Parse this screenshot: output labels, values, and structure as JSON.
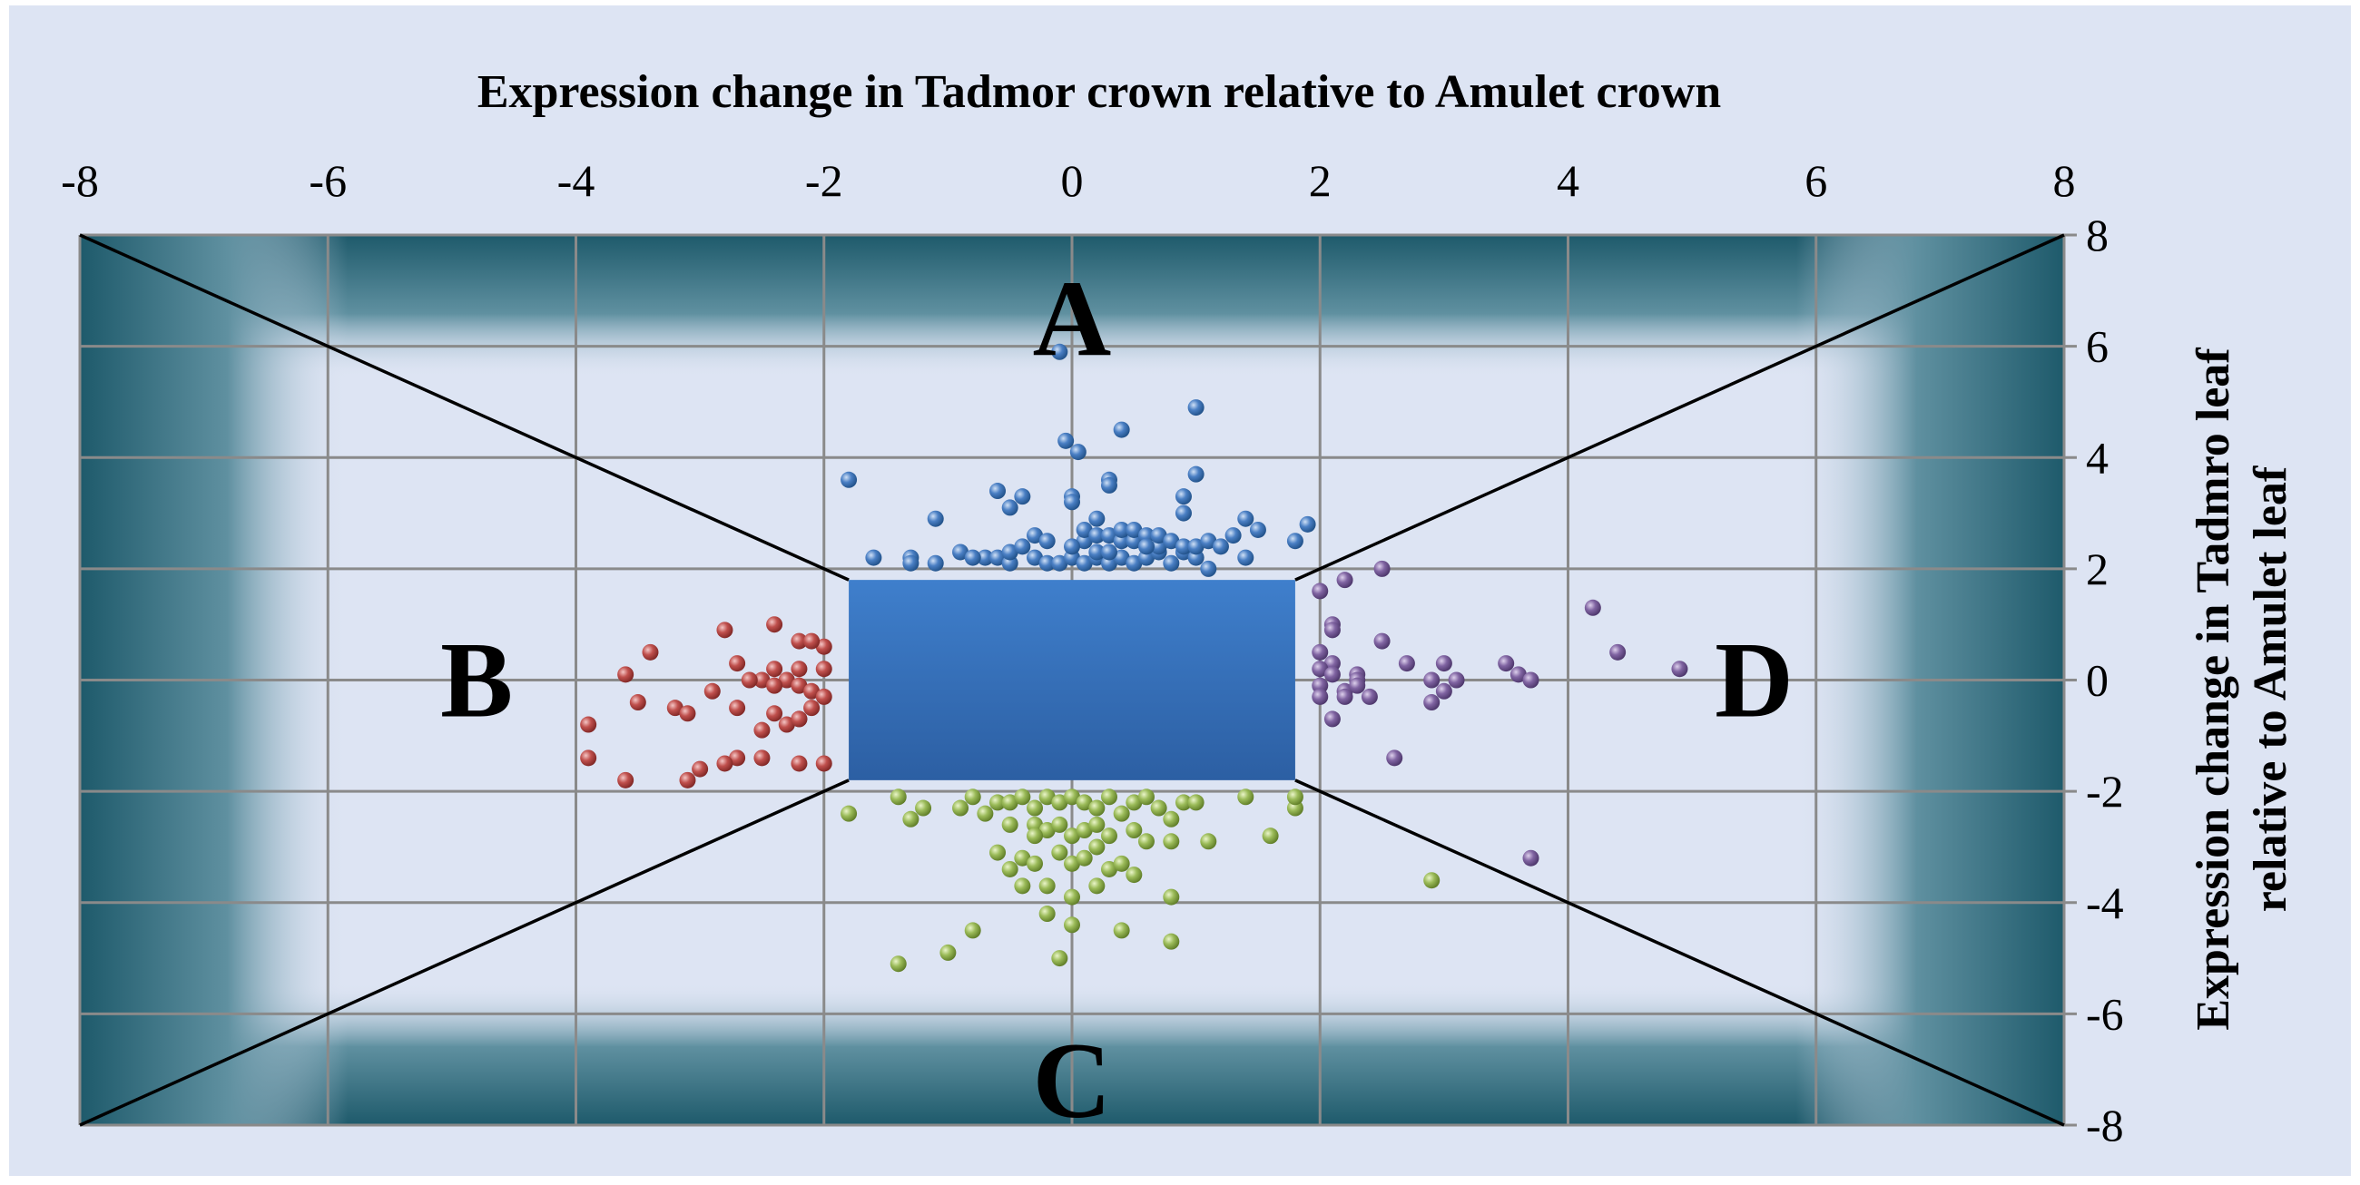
{
  "chart_data": {
    "type": "scatter",
    "title": "",
    "xlabel": "Expression change in Tadmor crown relative to Amulet crown",
    "ylabel": [
      "Expression change in Tadmro leaf",
      "relative to Amulet leaf"
    ],
    "xlim": [
      -8,
      8
    ],
    "ylim": [
      -8,
      8
    ],
    "x_ticks": [
      "-8",
      "-6",
      "-4",
      "-2",
      "0",
      "2",
      "4",
      "6",
      "8"
    ],
    "y_ticks": [
      "8",
      "6",
      "4",
      "2",
      "0",
      "-2",
      "-4",
      "-6",
      "-8"
    ],
    "x_axis_position": "top",
    "y_axis_position": "right",
    "grid": true,
    "threshold_box": {
      "x": [
        -1.8,
        1.8
      ],
      "y": [
        -1.8,
        1.8
      ],
      "color": "#3a78c6"
    },
    "region_labels": [
      {
        "text": "A",
        "x": 0,
        "y": 6.5
      },
      {
        "text": "B",
        "x": -4.8,
        "y": 0
      },
      {
        "text": "C",
        "x": 0,
        "y": -7.2
      },
      {
        "text": "D",
        "x": 5.5,
        "y": 0
      }
    ],
    "colors": {
      "A": "#4a7fc4",
      "B": "#c0504d",
      "C": "#9bbb59",
      "D": "#8064a2",
      "background": "#dde4f3",
      "border": "#1e5a6b"
    },
    "series": [
      {
        "group": "A",
        "color": "#4a7fc4",
        "points": [
          [
            -0.1,
            5.9
          ],
          [
            1.0,
            4.9
          ],
          [
            0.4,
            4.5
          ],
          [
            -0.05,
            4.3
          ],
          [
            0.05,
            4.1
          ],
          [
            -1.8,
            3.6
          ],
          [
            1.0,
            3.7
          ],
          [
            0.3,
            3.6
          ],
          [
            0.3,
            3.5
          ],
          [
            -0.6,
            3.4
          ],
          [
            -0.4,
            3.3
          ],
          [
            -0.5,
            3.1
          ],
          [
            0.0,
            3.3
          ],
          [
            0.0,
            3.2
          ],
          [
            0.9,
            3.3
          ],
          [
            1.4,
            2.9
          ],
          [
            1.5,
            2.7
          ],
          [
            1.8,
            2.5
          ],
          [
            1.9,
            2.8
          ],
          [
            0.9,
            3.0
          ],
          [
            -1.1,
            2.9
          ],
          [
            0.2,
            2.9
          ],
          [
            -1.6,
            2.2
          ],
          [
            -1.3,
            2.2
          ],
          [
            -1.3,
            2.1
          ],
          [
            -1.1,
            2.1
          ],
          [
            -0.7,
            2.2
          ],
          [
            -0.6,
            2.2
          ],
          [
            -0.5,
            2.1
          ],
          [
            -0.3,
            2.2
          ],
          [
            -0.2,
            2.1
          ],
          [
            -0.1,
            2.1
          ],
          [
            0.0,
            2.2
          ],
          [
            0.1,
            2.1
          ],
          [
            0.2,
            2.2
          ],
          [
            0.3,
            2.1
          ],
          [
            0.4,
            2.2
          ],
          [
            0.5,
            2.1
          ],
          [
            0.6,
            2.2
          ],
          [
            0.7,
            2.3
          ],
          [
            0.8,
            2.1
          ],
          [
            0.9,
            2.3
          ],
          [
            1.0,
            2.2
          ],
          [
            1.1,
            2.0
          ],
          [
            1.4,
            2.2
          ],
          [
            -0.3,
            2.6
          ],
          [
            -0.2,
            2.5
          ],
          [
            0.1,
            2.5
          ],
          [
            0.1,
            2.7
          ],
          [
            0.2,
            2.6
          ],
          [
            0.3,
            2.6
          ],
          [
            0.4,
            2.5
          ],
          [
            0.4,
            2.7
          ],
          [
            0.5,
            2.5
          ],
          [
            0.5,
            2.7
          ],
          [
            0.6,
            2.6
          ],
          [
            0.7,
            2.4
          ],
          [
            0.7,
            2.6
          ],
          [
            0.8,
            2.5
          ],
          [
            0.9,
            2.4
          ],
          [
            1.0,
            2.4
          ],
          [
            1.1,
            2.5
          ],
          [
            1.2,
            2.4
          ],
          [
            1.3,
            2.6
          ],
          [
            -0.5,
            2.3
          ],
          [
            -0.4,
            2.4
          ],
          [
            0.0,
            2.4
          ],
          [
            0.2,
            2.3
          ],
          [
            -0.9,
            2.3
          ],
          [
            -0.8,
            2.2
          ],
          [
            0.3,
            2.3
          ],
          [
            0.6,
            2.4
          ]
        ]
      },
      {
        "group": "B",
        "color": "#c0504d",
        "points": [
          [
            -2.4,
            1.0
          ],
          [
            -2.8,
            0.9
          ],
          [
            -2.2,
            0.7
          ],
          [
            -2.0,
            0.6
          ],
          [
            -2.1,
            0.7
          ],
          [
            -3.4,
            0.5
          ],
          [
            -2.7,
            0.3
          ],
          [
            -2.2,
            0.2
          ],
          [
            -2.4,
            0.2
          ],
          [
            -2.0,
            0.2
          ],
          [
            -3.6,
            0.1
          ],
          [
            -2.3,
            0.0
          ],
          [
            -2.5,
            0.0
          ],
          [
            -2.6,
            0.0
          ],
          [
            -2.9,
            -0.2
          ],
          [
            -2.4,
            -0.1
          ],
          [
            -2.2,
            -0.1
          ],
          [
            -2.1,
            -0.2
          ],
          [
            -2.0,
            -0.3
          ],
          [
            -3.5,
            -0.4
          ],
          [
            -3.2,
            -0.5
          ],
          [
            -3.1,
            -0.6
          ],
          [
            -2.7,
            -0.5
          ],
          [
            -2.4,
            -0.6
          ],
          [
            -2.2,
            -0.7
          ],
          [
            -2.3,
            -0.8
          ],
          [
            -3.9,
            -0.8
          ],
          [
            -2.5,
            -0.9
          ],
          [
            -2.2,
            -0.7
          ],
          [
            -3.9,
            -1.4
          ],
          [
            -2.7,
            -1.4
          ],
          [
            -2.8,
            -1.5
          ],
          [
            -2.5,
            -1.4
          ],
          [
            -2.2,
            -1.5
          ],
          [
            -2.0,
            -1.5
          ],
          [
            -3.0,
            -1.6
          ],
          [
            -3.6,
            -1.8
          ],
          [
            -3.1,
            -1.8
          ],
          [
            -2.1,
            -0.5
          ]
        ]
      },
      {
        "group": "C",
        "color": "#9bbb59",
        "points": [
          [
            -1.8,
            -2.4
          ],
          [
            -1.4,
            -2.1
          ],
          [
            -1.3,
            -2.5
          ],
          [
            -1.2,
            -2.3
          ],
          [
            -0.9,
            -2.3
          ],
          [
            -0.8,
            -2.1
          ],
          [
            -0.7,
            -2.4
          ],
          [
            -0.6,
            -2.2
          ],
          [
            -0.5,
            -2.2
          ],
          [
            -0.4,
            -2.1
          ],
          [
            -0.3,
            -2.3
          ],
          [
            -0.2,
            -2.1
          ],
          [
            -0.1,
            -2.2
          ],
          [
            0.0,
            -2.1
          ],
          [
            0.1,
            -2.2
          ],
          [
            0.2,
            -2.3
          ],
          [
            0.3,
            -2.1
          ],
          [
            0.4,
            -2.4
          ],
          [
            0.5,
            -2.2
          ],
          [
            0.6,
            -2.1
          ],
          [
            0.7,
            -2.3
          ],
          [
            0.8,
            -2.5
          ],
          [
            0.9,
            -2.2
          ],
          [
            1.0,
            -2.2
          ],
          [
            1.4,
            -2.1
          ],
          [
            1.8,
            -2.3
          ],
          [
            1.8,
            -2.1
          ],
          [
            -0.5,
            -2.6
          ],
          [
            -0.3,
            -2.6
          ],
          [
            -0.2,
            -2.7
          ],
          [
            -0.1,
            -2.6
          ],
          [
            0.0,
            -2.8
          ],
          [
            0.1,
            -2.7
          ],
          [
            0.2,
            -2.6
          ],
          [
            0.3,
            -2.8
          ],
          [
            0.5,
            -2.7
          ],
          [
            0.6,
            -2.9
          ],
          [
            0.8,
            -2.9
          ],
          [
            1.1,
            -2.9
          ],
          [
            1.6,
            -2.8
          ],
          [
            -0.6,
            -3.1
          ],
          [
            -0.4,
            -3.2
          ],
          [
            -0.3,
            -3.3
          ],
          [
            -0.1,
            -3.1
          ],
          [
            0.0,
            -3.3
          ],
          [
            0.1,
            -3.2
          ],
          [
            0.3,
            -3.4
          ],
          [
            0.4,
            -3.3
          ],
          [
            0.5,
            -3.5
          ],
          [
            -0.5,
            -3.4
          ],
          [
            -0.4,
            -3.7
          ],
          [
            -0.2,
            -3.7
          ],
          [
            0.0,
            -3.9
          ],
          [
            0.2,
            -3.7
          ],
          [
            0.8,
            -3.9
          ],
          [
            -0.2,
            -4.2
          ],
          [
            0.0,
            -4.4
          ],
          [
            0.4,
            -4.5
          ],
          [
            -0.8,
            -4.5
          ],
          [
            0.8,
            -4.7
          ],
          [
            -1.0,
            -4.9
          ],
          [
            -1.4,
            -5.1
          ],
          [
            -0.1,
            -5.0
          ],
          [
            2.9,
            -3.6
          ],
          [
            -0.3,
            -2.8
          ],
          [
            0.2,
            -3.0
          ]
        ]
      },
      {
        "group": "D",
        "color": "#8064a2",
        "points": [
          [
            2.0,
            1.6
          ],
          [
            2.2,
            1.8
          ],
          [
            2.5,
            2.0
          ],
          [
            4.2,
            1.3
          ],
          [
            2.1,
            1.0
          ],
          [
            2.1,
            0.9
          ],
          [
            2.5,
            0.7
          ],
          [
            2.0,
            0.5
          ],
          [
            2.1,
            0.3
          ],
          [
            2.7,
            0.3
          ],
          [
            3.0,
            0.3
          ],
          [
            3.5,
            0.3
          ],
          [
            2.0,
            0.2
          ],
          [
            2.1,
            0.1
          ],
          [
            2.3,
            0.1
          ],
          [
            2.3,
            0.0
          ],
          [
            2.9,
            0.0
          ],
          [
            3.1,
            0.0
          ],
          [
            3.6,
            0.1
          ],
          [
            3.7,
            0.0
          ],
          [
            2.0,
            -0.1
          ],
          [
            2.2,
            -0.2
          ],
          [
            2.3,
            -0.1
          ],
          [
            2.4,
            -0.3
          ],
          [
            2.2,
            -0.3
          ],
          [
            2.0,
            -0.3
          ],
          [
            3.0,
            -0.2
          ],
          [
            2.9,
            -0.4
          ],
          [
            4.4,
            0.5
          ],
          [
            4.9,
            0.2
          ],
          [
            2.1,
            -0.7
          ],
          [
            2.6,
            -1.4
          ],
          [
            3.7,
            -3.2
          ]
        ]
      }
    ]
  }
}
